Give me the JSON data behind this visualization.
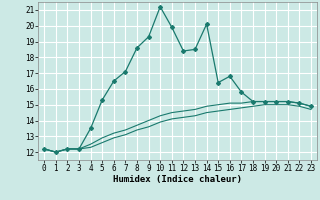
{
  "title": "",
  "xlabel": "Humidex (Indice chaleur)",
  "ylabel": "",
  "background_color": "#cce9e5",
  "grid_color": "#ffffff",
  "line_color": "#1a7a6e",
  "xlim": [
    -0.5,
    23.5
  ],
  "ylim": [
    11.5,
    21.5
  ],
  "xticks": [
    0,
    1,
    2,
    3,
    4,
    5,
    6,
    7,
    8,
    9,
    10,
    11,
    12,
    13,
    14,
    15,
    16,
    17,
    18,
    19,
    20,
    21,
    22,
    23
  ],
  "yticks": [
    12,
    13,
    14,
    15,
    16,
    17,
    18,
    19,
    20,
    21
  ],
  "main_line_x": [
    0,
    1,
    2,
    3,
    4,
    5,
    6,
    7,
    8,
    9,
    10,
    11,
    12,
    13,
    14,
    15,
    16,
    17,
    18,
    19,
    20,
    21,
    22,
    23
  ],
  "main_line_y": [
    12.2,
    12.0,
    12.2,
    12.2,
    13.5,
    15.3,
    16.5,
    17.1,
    18.6,
    19.3,
    21.2,
    19.9,
    18.4,
    18.5,
    20.1,
    16.4,
    16.8,
    15.8,
    15.2,
    15.2,
    15.2,
    15.2,
    15.1,
    14.9
  ],
  "lower_line1_x": [
    0,
    1,
    2,
    3,
    4,
    5,
    6,
    7,
    8,
    9,
    10,
    11,
    12,
    13,
    14,
    15,
    16,
    17,
    18,
    19,
    20,
    21,
    22,
    23
  ],
  "lower_line1_y": [
    12.2,
    12.0,
    12.2,
    12.2,
    12.5,
    12.9,
    13.2,
    13.4,
    13.7,
    14.0,
    14.3,
    14.5,
    14.6,
    14.7,
    14.9,
    15.0,
    15.1,
    15.1,
    15.2,
    15.2,
    15.2,
    15.2,
    15.1,
    14.9
  ],
  "lower_line2_x": [
    0,
    1,
    2,
    3,
    4,
    5,
    6,
    7,
    8,
    9,
    10,
    11,
    12,
    13,
    14,
    15,
    16,
    17,
    18,
    19,
    20,
    21,
    22,
    23
  ],
  "lower_line2_y": [
    12.2,
    12.0,
    12.2,
    12.2,
    12.3,
    12.6,
    12.9,
    13.1,
    13.4,
    13.6,
    13.9,
    14.1,
    14.2,
    14.3,
    14.5,
    14.6,
    14.7,
    14.8,
    14.9,
    15.0,
    15.0,
    15.0,
    14.9,
    14.7
  ]
}
